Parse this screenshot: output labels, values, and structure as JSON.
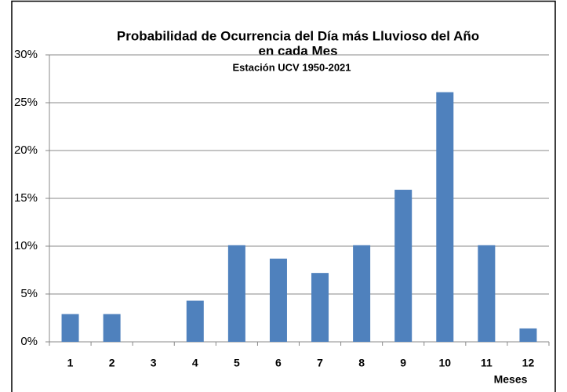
{
  "chart_data": {
    "type": "bar",
    "title": [
      "Probabilidad de Ocurrencia del Día más Lluvioso del Año",
      "en cada Mes"
    ],
    "subtitle": "Estación UCV 1950-2021",
    "x_label": "Meses",
    "categories": [
      "1",
      "2",
      "3",
      "4",
      "5",
      "6",
      "7",
      "8",
      "9",
      "10",
      "11",
      "12"
    ],
    "values": [
      2.9,
      2.9,
      0,
      4.3,
      10.1,
      8.7,
      7.2,
      10.1,
      15.9,
      26.1,
      10.1,
      1.4
    ],
    "color": "#4f81bd",
    "ylim": [
      0,
      30
    ],
    "yticks": [
      {
        "value": 0,
        "label": "0%"
      },
      {
        "value": 5,
        "label": "5%"
      },
      {
        "value": 10,
        "label": "10%"
      },
      {
        "value": 15,
        "label": "15%"
      },
      {
        "value": 20,
        "label": "20%"
      },
      {
        "value": 25,
        "label": "25%"
      },
      {
        "value": 30,
        "label": "30%"
      }
    ],
    "grid": true
  }
}
